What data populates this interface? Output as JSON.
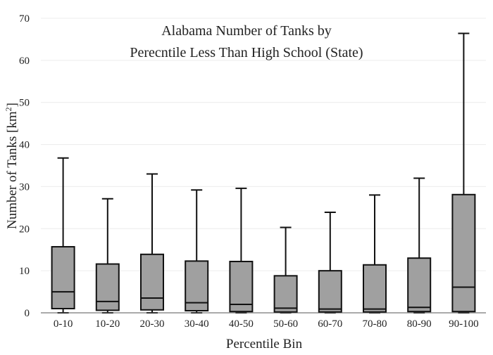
{
  "chart_data": {
    "type": "boxplot",
    "title_lines": [
      "Alabama Number of Tanks by",
      "Perecntile Less Than High School (State)"
    ],
    "xlabel": "Percentile Bin",
    "ylabel": "Number of Tanks  [km",
    "ylabel_sup": "2",
    "ylabel_close": "]",
    "ylim": [
      0,
      70
    ],
    "yticks": [
      0,
      10,
      20,
      30,
      40,
      50,
      60,
      70
    ],
    "grid": true,
    "categories": [
      "0-10",
      "10-20",
      "20-30",
      "30-40",
      "40-50",
      "50-60",
      "60-70",
      "70-80",
      "80-90",
      "90-100"
    ],
    "boxes": [
      {
        "min": 0,
        "q1": 1.0,
        "median": 5.0,
        "q3": 15.7,
        "max": 36.8
      },
      {
        "min": 0,
        "q1": 0.6,
        "median": 2.7,
        "q3": 11.6,
        "max": 27.1
      },
      {
        "min": 0,
        "q1": 0.7,
        "median": 3.5,
        "q3": 13.9,
        "max": 33.0
      },
      {
        "min": 0,
        "q1": 0.5,
        "median": 2.4,
        "q3": 12.3,
        "max": 29.2
      },
      {
        "min": 0,
        "q1": 0.3,
        "median": 2.0,
        "q3": 12.2,
        "max": 29.6
      },
      {
        "min": 0,
        "q1": 0.2,
        "median": 1.1,
        "q3": 8.8,
        "max": 20.3
      },
      {
        "min": 0,
        "q1": 0.2,
        "median": 0.9,
        "q3": 10.0,
        "max": 23.9
      },
      {
        "min": 0,
        "q1": 0.2,
        "median": 0.9,
        "q3": 11.4,
        "max": 28.0
      },
      {
        "min": 0,
        "q1": 0.3,
        "median": 1.3,
        "q3": 13.0,
        "max": 32.0
      },
      {
        "min": 0,
        "q1": 0.3,
        "median": 6.1,
        "q3": 28.1,
        "max": 66.4
      }
    ],
    "colors": {
      "box_fill": "#a0a0a0",
      "box_stroke": "#111111",
      "grid": "#ececec",
      "axis": "#555555"
    }
  }
}
